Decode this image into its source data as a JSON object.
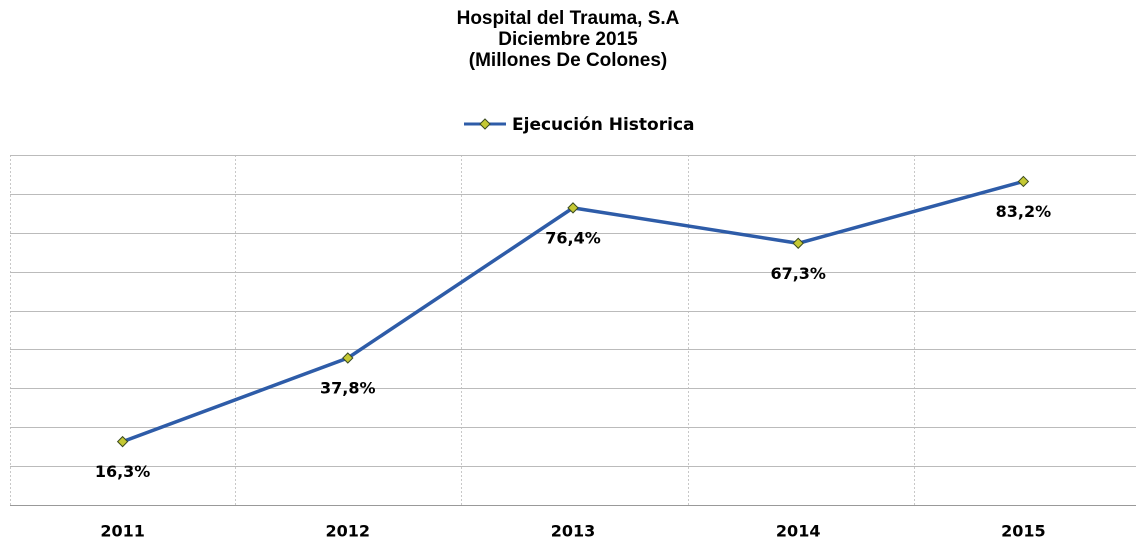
{
  "chart_data": {
    "type": "line",
    "title": [
      "Hospital del Trauma, S.A",
      "Diciembre 2015",
      "(Millones De Colones)"
    ],
    "categories": [
      "2011",
      "2012",
      "2013",
      "2014",
      "2015"
    ],
    "series": [
      {
        "name": "Ejecución Historica",
        "color": "#2e5ca8",
        "marker_color": "#c5c934",
        "values": [
          16.3,
          37.8,
          76.4,
          67.3,
          83.2
        ],
        "value_labels": [
          "16,3%",
          "37,8%",
          "76,4%",
          "67,3%",
          "83,2%"
        ]
      }
    ],
    "ylim": [
      0,
      90
    ],
    "yticks": [
      0,
      10,
      20,
      30,
      40,
      50,
      60,
      70,
      80,
      90
    ],
    "grid": true,
    "legend": "top"
  }
}
